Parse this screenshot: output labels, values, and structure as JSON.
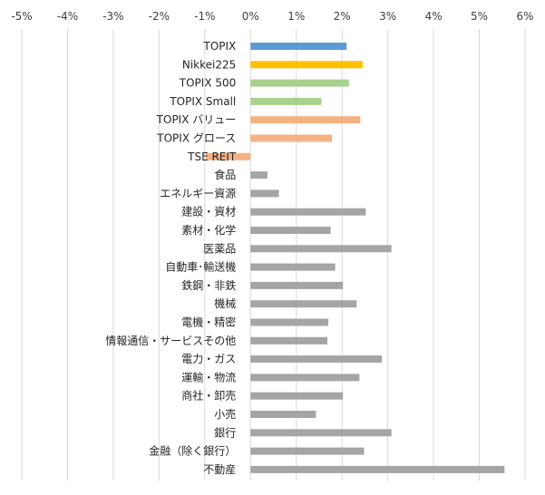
{
  "chart_data": {
    "type": "bar",
    "orientation": "horizontal",
    "x_axis_position": "top",
    "grid": true,
    "legend": "none",
    "xlim": [
      -5,
      6
    ],
    "x_ticks": [
      -5,
      -4,
      -3,
      -2,
      -1,
      0,
      1,
      2,
      3,
      4,
      5,
      6
    ],
    "x_tick_labels": [
      "-5%",
      "-4%",
      "-3%",
      "-2%",
      "-1%",
      "0%",
      "1%",
      "2%",
      "3%",
      "4%",
      "5%",
      "6%"
    ],
    "categories": [
      "TOPIX",
      "Nikkei225",
      "TOPIX 500",
      "TOPIX Small",
      "TOPIX バリュー",
      "TOPIX グロース",
      "TSE REIT",
      "食品",
      "エネルギー資源",
      "建設・資材",
      "素材・化学",
      "医薬品",
      "自動車･輸送機",
      "鉄鋼・非鉄",
      "機械",
      "電機・精密",
      "情報通信・サービスその他",
      "電力・ガス",
      "運輸・物流",
      "商社・卸売",
      "小売",
      "銀行",
      "金融（除く銀行）",
      "不動産"
    ],
    "values": [
      2.1,
      2.45,
      2.15,
      1.55,
      2.4,
      1.78,
      -0.98,
      0.37,
      0.62,
      2.52,
      1.75,
      3.08,
      1.85,
      2.02,
      2.32,
      1.7,
      1.68,
      2.87,
      2.38,
      2.02,
      1.43,
      3.08,
      2.48,
      5.55
    ],
    "colors": [
      "#5b9bd5",
      "#ffc000",
      "#a9d18e",
      "#a9d18e",
      "#f4b183",
      "#f4b183",
      "#f4b183",
      "#a5a5a5",
      "#a5a5a5",
      "#a5a5a5",
      "#a5a5a5",
      "#a5a5a5",
      "#a5a5a5",
      "#a5a5a5",
      "#a5a5a5",
      "#a5a5a5",
      "#a5a5a5",
      "#a5a5a5",
      "#a5a5a5",
      "#a5a5a5",
      "#a5a5a5",
      "#a5a5a5",
      "#a5a5a5",
      "#a5a5a5"
    ]
  }
}
